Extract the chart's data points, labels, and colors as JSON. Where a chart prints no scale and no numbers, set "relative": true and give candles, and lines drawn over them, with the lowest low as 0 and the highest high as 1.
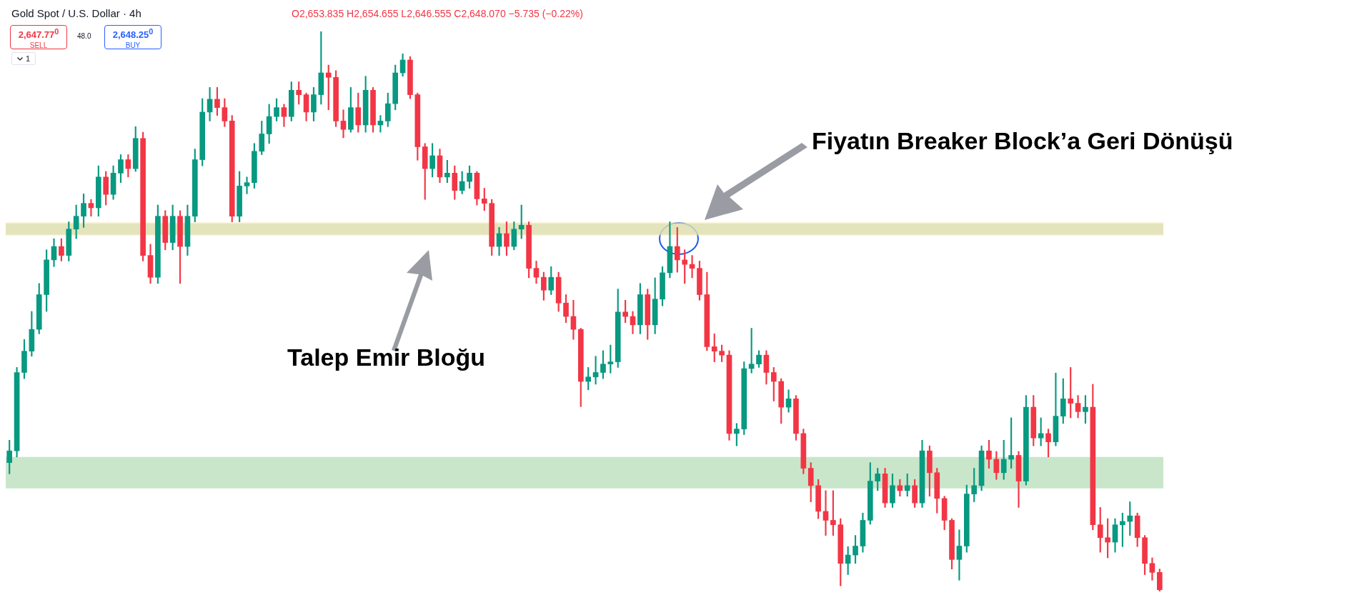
{
  "chart_data": {
    "type": "candlestick",
    "title": "Gold Spot / U.S. Dollar · 4h",
    "subtitle": "O2,653.835 H2,654.655 L2,646.555 C2,648.070 −5.735 (−0.22%)",
    "annotations": [
      "Fiyatın Breaker Block’a Geri Dönüşü",
      "Talep Emir Bloğu",
      "2,647.77$^{0}$",
      "SELL",
      "48.0",
      "2,648.25$^{0}$",
      "BUY",
      "1"
    ],
    "relative": true,
    "tick_labels": false,
    "bands": [
      {
        "axis": "y",
        "from": 0.637,
        "to": 0.657,
        "color": "#a5d6a7"
      },
      {
        "axis": "y",
        "from": 0.636,
        "to": 0.659,
        "color": "#f5e3b0"
      },
      {
        "axis": "y",
        "from": 0.184,
        "to": 0.24,
        "color": "#a5d6a7"
      }
    ],
    "categories": [
      null,
      null,
      null,
      null,
      null,
      null,
      null,
      null,
      null,
      null,
      null,
      null,
      null,
      null,
      null,
      null,
      null,
      null,
      null,
      null,
      null,
      null,
      null,
      null,
      null,
      null,
      null,
      null,
      null,
      null,
      null,
      null,
      null,
      null,
      null,
      null,
      null,
      null,
      null,
      null,
      null,
      null,
      null,
      null,
      null,
      null,
      null,
      null,
      null,
      null,
      null,
      null,
      null,
      null,
      null,
      null,
      null,
      null,
      null,
      null,
      null,
      null,
      null,
      null,
      null,
      null,
      null,
      null,
      null,
      null,
      null,
      null,
      null,
      null,
      null,
      null,
      null,
      null,
      null,
      null,
      null,
      null,
      null,
      null,
      null,
      null,
      null,
      null,
      null,
      null,
      null,
      null,
      null,
      null,
      null,
      null,
      null,
      null,
      null,
      null,
      null,
      null,
      null,
      null,
      null,
      null,
      null,
      null,
      null,
      null,
      null,
      null,
      null,
      null,
      null,
      null,
      null,
      null,
      null,
      null,
      null,
      null,
      null,
      null,
      null,
      null,
      null,
      null,
      null,
      null,
      null,
      null,
      null,
      null,
      null,
      null,
      null,
      null,
      null,
      null,
      null,
      null,
      null,
      null,
      null,
      null,
      null,
      null,
      null,
      null,
      null,
      null,
      null,
      null,
      null,
      null
    ],
    "ohlc": [
      [
        0.23,
        0.27,
        0.21,
        0.251
      ],
      [
        0.251,
        0.4,
        0.24,
        0.391
      ],
      [
        0.391,
        0.45,
        0.38,
        0.429
      ],
      [
        0.429,
        0.5,
        0.42,
        0.468
      ],
      [
        0.468,
        0.55,
        0.46,
        0.53
      ],
      [
        0.53,
        0.61,
        0.5,
        0.592
      ],
      [
        0.592,
        0.63,
        0.58,
        0.616
      ],
      [
        0.616,
        0.63,
        0.59,
        0.6
      ],
      [
        0.6,
        0.66,
        0.59,
        0.647
      ],
      [
        0.647,
        0.69,
        0.63,
        0.67
      ],
      [
        0.67,
        0.71,
        0.65,
        0.693
      ],
      [
        0.693,
        0.7,
        0.67,
        0.685
      ],
      [
        0.685,
        0.76,
        0.67,
        0.74
      ],
      [
        0.74,
        0.75,
        0.69,
        0.709
      ],
      [
        0.709,
        0.76,
        0.7,
        0.747
      ],
      [
        0.747,
        0.78,
        0.73,
        0.771
      ],
      [
        0.771,
        0.78,
        0.74,
        0.755
      ],
      [
        0.755,
        0.83,
        0.75,
        0.809
      ],
      [
        0.809,
        0.82,
        0.59,
        0.6
      ],
      [
        0.6,
        0.62,
        0.55,
        0.561
      ],
      [
        0.561,
        0.69,
        0.55,
        0.67
      ],
      [
        0.67,
        0.68,
        0.61,
        0.623
      ],
      [
        0.623,
        0.69,
        0.61,
        0.67
      ],
      [
        0.67,
        0.68,
        0.55,
        0.616
      ],
      [
        0.616,
        0.69,
        0.6,
        0.67
      ],
      [
        0.67,
        0.79,
        0.66,
        0.771
      ],
      [
        0.771,
        0.88,
        0.76,
        0.856
      ],
      [
        0.856,
        0.9,
        0.84,
        0.879
      ],
      [
        0.879,
        0.9,
        0.85,
        0.864
      ],
      [
        0.864,
        0.88,
        0.83,
        0.84
      ],
      [
        0.84,
        0.85,
        0.66,
        0.67
      ],
      [
        0.67,
        0.75,
        0.66,
        0.724
      ],
      [
        0.724,
        0.74,
        0.71,
        0.73
      ],
      [
        0.73,
        0.8,
        0.72,
        0.786
      ],
      [
        0.786,
        0.84,
        0.78,
        0.817
      ],
      [
        0.817,
        0.87,
        0.8,
        0.848
      ],
      [
        0.848,
        0.88,
        0.84,
        0.864
      ],
      [
        0.864,
        0.87,
        0.83,
        0.848
      ],
      [
        0.848,
        0.91,
        0.84,
        0.895
      ],
      [
        0.895,
        0.91,
        0.87,
        0.887
      ],
      [
        0.887,
        0.89,
        0.84,
        0.856
      ],
      [
        0.856,
        0.9,
        0.84,
        0.887
      ],
      [
        0.887,
        1,
        0.87,
        0.926
      ],
      [
        0.926,
        0.94,
        0.86,
        0.918
      ],
      [
        0.918,
        0.93,
        0.83,
        0.84
      ],
      [
        0.84,
        0.86,
        0.81,
        0.825
      ],
      [
        0.825,
        0.9,
        0.82,
        0.864
      ],
      [
        0.864,
        0.89,
        0.82,
        0.833
      ],
      [
        0.833,
        0.92,
        0.82,
        0.895
      ],
      [
        0.895,
        0.9,
        0.82,
        0.833
      ],
      [
        0.833,
        0.85,
        0.82,
        0.84
      ],
      [
        0.84,
        0.89,
        0.83,
        0.871
      ],
      [
        0.871,
        0.94,
        0.86,
        0.926
      ],
      [
        0.926,
        0.96,
        0.92,
        0.949
      ],
      [
        0.949,
        0.955,
        0.88,
        0.887
      ],
      [
        0.887,
        0.89,
        0.77,
        0.794
      ],
      [
        0.794,
        0.8,
        0.7,
        0.755
      ],
      [
        0.755,
        0.8,
        0.74,
        0.778
      ],
      [
        0.778,
        0.79,
        0.73,
        0.74
      ],
      [
        0.74,
        0.77,
        0.73,
        0.747
      ],
      [
        0.747,
        0.76,
        0.7,
        0.716
      ],
      [
        0.716,
        0.75,
        0.71,
        0.732
      ],
      [
        0.732,
        0.76,
        0.72,
        0.747
      ],
      [
        0.747,
        0.75,
        0.69,
        0.701
      ],
      [
        0.701,
        0.72,
        0.68,
        0.693
      ],
      [
        0.693,
        0.7,
        0.6,
        0.616
      ],
      [
        0.616,
        0.65,
        0.6,
        0.639
      ],
      [
        0.639,
        0.66,
        0.6,
        0.616
      ],
      [
        0.616,
        0.66,
        0.61,
        0.647
      ],
      [
        0.647,
        0.69,
        0.63,
        0.654
      ],
      [
        0.654,
        0.66,
        0.56,
        0.577
      ],
      [
        0.577,
        0.59,
        0.55,
        0.561
      ],
      [
        0.561,
        0.57,
        0.52,
        0.538
      ],
      [
        0.538,
        0.58,
        0.53,
        0.561
      ],
      [
        0.561,
        0.57,
        0.5,
        0.515
      ],
      [
        0.515,
        0.53,
        0.48,
        0.491
      ],
      [
        0.491,
        0.52,
        0.45,
        0.468
      ],
      [
        0.468,
        0.47,
        0.33,
        0.375
      ],
      [
        0.375,
        0.4,
        0.36,
        0.383
      ],
      [
        0.383,
        0.42,
        0.37,
        0.391
      ],
      [
        0.391,
        0.43,
        0.38,
        0.406
      ],
      [
        0.406,
        0.44,
        0.39,
        0.41
      ],
      [
        0.41,
        0.54,
        0.4,
        0.499
      ],
      [
        0.499,
        0.52,
        0.48,
        0.491
      ],
      [
        0.491,
        0.5,
        0.46,
        0.476
      ],
      [
        0.476,
        0.55,
        0.46,
        0.53
      ],
      [
        0.53,
        0.54,
        0.45,
        0.476
      ],
      [
        0.476,
        0.56,
        0.46,
        0.522
      ],
      [
        0.522,
        0.58,
        0.51,
        0.569
      ],
      [
        0.569,
        0.66,
        0.56,
        0.616
      ],
      [
        0.616,
        0.65,
        0.57,
        0.592
      ],
      [
        0.592,
        0.61,
        0.55,
        0.584
      ],
      [
        0.584,
        0.6,
        0.56,
        0.577
      ],
      [
        0.577,
        0.59,
        0.52,
        0.53
      ],
      [
        0.53,
        0.57,
        0.43,
        0.437
      ],
      [
        0.437,
        0.46,
        0.41,
        0.429
      ],
      [
        0.429,
        0.44,
        0.41,
        0.422
      ],
      [
        0.422,
        0.43,
        0.27,
        0.282
      ],
      [
        0.282,
        0.3,
        0.26,
        0.29
      ],
      [
        0.29,
        0.41,
        0.28,
        0.398
      ],
      [
        0.398,
        0.47,
        0.39,
        0.406
      ],
      [
        0.406,
        0.43,
        0.4,
        0.422
      ],
      [
        0.422,
        0.43,
        0.37,
        0.391
      ],
      [
        0.391,
        0.4,
        0.34,
        0.375
      ],
      [
        0.375,
        0.38,
        0.3,
        0.329
      ],
      [
        0.329,
        0.36,
        0.32,
        0.344
      ],
      [
        0.344,
        0.35,
        0.27,
        0.282
      ],
      [
        0.282,
        0.29,
        0.21,
        0.22
      ],
      [
        0.22,
        0.23,
        0.16,
        0.189
      ],
      [
        0.189,
        0.2,
        0.13,
        0.143
      ],
      [
        0.143,
        0.18,
        0.1,
        0.127
      ],
      [
        0.127,
        0.18,
        0.1,
        0.119
      ],
      [
        0.119,
        0.13,
        0.01,
        0.05
      ],
      [
        0.05,
        0.08,
        0.03,
        0.065
      ],
      [
        0.065,
        0.1,
        0.05,
        0.081
      ],
      [
        0.081,
        0.14,
        0.07,
        0.127
      ],
      [
        0.127,
        0.23,
        0.12,
        0.197
      ],
      [
        0.197,
        0.22,
        0.18,
        0.21
      ],
      [
        0.21,
        0.22,
        0.15,
        0.158
      ],
      [
        0.158,
        0.21,
        0.15,
        0.189
      ],
      [
        0.189,
        0.2,
        0.17,
        0.18
      ],
      [
        0.18,
        0.21,
        0.17,
        0.189
      ],
      [
        0.189,
        0.2,
        0.15,
        0.158
      ],
      [
        0.158,
        0.27,
        0.15,
        0.251
      ],
      [
        0.251,
        0.26,
        0.17,
        0.212
      ],
      [
        0.212,
        0.22,
        0.14,
        0.166
      ],
      [
        0.166,
        0.17,
        0.11,
        0.127
      ],
      [
        0.127,
        0.13,
        0.04,
        0.057
      ],
      [
        0.057,
        0.11,
        0.02,
        0.081
      ],
      [
        0.081,
        0.19,
        0.07,
        0.174
      ],
      [
        0.174,
        0.22,
        0.16,
        0.189
      ],
      [
        0.189,
        0.26,
        0.18,
        0.251
      ],
      [
        0.251,
        0.27,
        0.22,
        0.236
      ],
      [
        0.236,
        0.25,
        0.2,
        0.212
      ],
      [
        0.212,
        0.27,
        0.2,
        0.236
      ],
      [
        0.236,
        0.31,
        0.22,
        0.243
      ],
      [
        0.243,
        0.25,
        0.15,
        0.197
      ],
      [
        0.197,
        0.35,
        0.19,
        0.329
      ],
      [
        0.329,
        0.35,
        0.26,
        0.274
      ],
      [
        0.274,
        0.31,
        0.26,
        0.282
      ],
      [
        0.282,
        0.29,
        0.24,
        0.267
      ],
      [
        0.267,
        0.39,
        0.26,
        0.313
      ],
      [
        0.313,
        0.38,
        0.3,
        0.344
      ],
      [
        0.344,
        0.4,
        0.31,
        0.336
      ],
      [
        0.336,
        0.35,
        0.31,
        0.321
      ],
      [
        0.321,
        0.35,
        0.3,
        0.329
      ],
      [
        0.329,
        0.37,
        0.11,
        0.119
      ],
      [
        0.119,
        0.15,
        0.07,
        0.096
      ],
      [
        0.096,
        0.13,
        0.06,
        0.088
      ],
      [
        0.088,
        0.13,
        0.07,
        0.119
      ],
      [
        0.119,
        0.14,
        0.08,
        0.125
      ],
      [
        0.125,
        0.16,
        0.1,
        0.135
      ],
      [
        0.135,
        0.14,
        0.08,
        0.096
      ],
      [
        0.096,
        0.1,
        0.03,
        0.05
      ],
      [
        0.05,
        0.06,
        0.02,
        0.034
      ],
      [
        0.034,
        0.04,
        0,
        0.003
      ]
    ]
  }
}
